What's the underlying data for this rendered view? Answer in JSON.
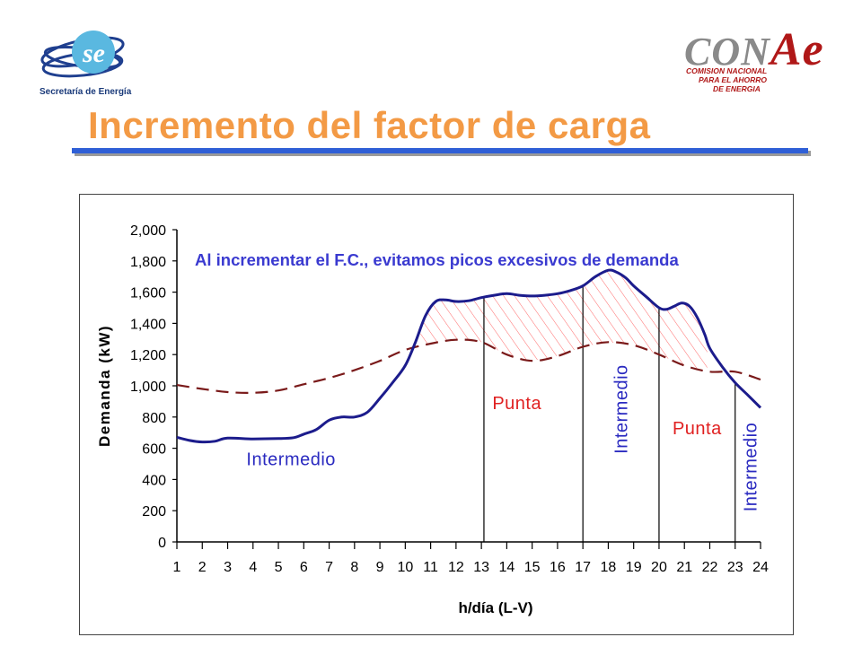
{
  "header": {
    "left_logo_caption": "Secretaría de Energía",
    "right_logo": {
      "word": "CON",
      "word_accent": "Ae",
      "lines": [
        "COMISION NACIONAL",
        "PARA EL AHORRO",
        "DE ENERGIA"
      ]
    },
    "title": "Incremento del factor de carga"
  },
  "colors": {
    "title": "#f39a45",
    "rule": "#2f5fd6",
    "demand_line": "#1c1c8c",
    "target_line": "#7a1a1a",
    "hatch": "#ff6a6a",
    "annotation": "#3a3ad0"
  },
  "chart_data": {
    "type": "line",
    "xlabel": "h/día (L-V)",
    "ylabel": "Demanda (kW)",
    "ylim": [
      0,
      2000
    ],
    "yticks": [
      0,
      200,
      400,
      600,
      800,
      1000,
      1200,
      1400,
      1600,
      1800,
      2000
    ],
    "ytick_labels": [
      "0",
      "200",
      "400",
      "600",
      "800",
      "1,000",
      "1,200",
      "1,400",
      "1,600",
      "1,800",
      "2,000"
    ],
    "xlim": [
      1,
      24
    ],
    "xticks": [
      1,
      2,
      3,
      4,
      5,
      6,
      7,
      8,
      9,
      10,
      11,
      12,
      13,
      14,
      15,
      16,
      17,
      18,
      19,
      20,
      21,
      22,
      23,
      24
    ],
    "xtick_labels": [
      "1",
      "2",
      "3",
      "4",
      "5",
      "6",
      "7",
      "8",
      "9",
      "10",
      "11",
      "12",
      "13",
      "14",
      "15",
      "16",
      "17",
      "18",
      "19",
      "20",
      "21",
      "22",
      "23",
      "24"
    ],
    "grid": false,
    "annotation": "Al incrementar el F.C., evitamos picos excesivos de demanda",
    "series": [
      {
        "style": "solid",
        "points": [
          [
            1,
            670
          ],
          [
            1.5,
            650
          ],
          [
            2,
            640
          ],
          [
            2.5,
            645
          ],
          [
            3,
            665
          ],
          [
            4,
            660
          ],
          [
            5,
            662
          ],
          [
            5.6,
            668
          ],
          [
            6,
            690
          ],
          [
            6.5,
            720
          ],
          [
            7,
            780
          ],
          [
            7.5,
            800
          ],
          [
            8,
            800
          ],
          [
            8.5,
            830
          ],
          [
            9,
            920
          ],
          [
            9.5,
            1020
          ],
          [
            10,
            1130
          ],
          [
            10.4,
            1280
          ],
          [
            10.8,
            1450
          ],
          [
            11.2,
            1540
          ],
          [
            11.6,
            1550
          ],
          [
            12,
            1540
          ],
          [
            12.5,
            1545
          ],
          [
            13,
            1565
          ],
          [
            13.5,
            1580
          ],
          [
            14,
            1590
          ],
          [
            14.5,
            1580
          ],
          [
            15,
            1575
          ],
          [
            15.5,
            1580
          ],
          [
            16,
            1590
          ],
          [
            16.5,
            1610
          ],
          [
            17,
            1640
          ],
          [
            17.5,
            1700
          ],
          [
            18,
            1740
          ],
          [
            18.3,
            1730
          ],
          [
            18.7,
            1690
          ],
          [
            19,
            1640
          ],
          [
            19.5,
            1570
          ],
          [
            20,
            1500
          ],
          [
            20.3,
            1490
          ],
          [
            20.6,
            1510
          ],
          [
            20.9,
            1530
          ],
          [
            21.2,
            1510
          ],
          [
            21.5,
            1440
          ],
          [
            21.8,
            1330
          ],
          [
            22,
            1240
          ],
          [
            22.5,
            1120
          ],
          [
            23,
            1020
          ],
          [
            23.5,
            940
          ],
          [
            24,
            860
          ]
        ]
      },
      {
        "style": "dashed",
        "points": [
          [
            1,
            1005
          ],
          [
            2,
            980
          ],
          [
            3,
            960
          ],
          [
            4,
            955
          ],
          [
            5,
            970
          ],
          [
            6,
            1010
          ],
          [
            7,
            1050
          ],
          [
            8,
            1100
          ],
          [
            9,
            1160
          ],
          [
            10,
            1230
          ],
          [
            11,
            1270
          ],
          [
            12,
            1295
          ],
          [
            13,
            1280
          ],
          [
            14,
            1200
          ],
          [
            15,
            1160
          ],
          [
            16,
            1190
          ],
          [
            17,
            1250
          ],
          [
            18,
            1280
          ],
          [
            19,
            1260
          ],
          [
            20,
            1200
          ],
          [
            21,
            1130
          ],
          [
            22,
            1090
          ],
          [
            23,
            1090
          ],
          [
            24,
            1040
          ]
        ]
      }
    ],
    "hatched_region_x": [
      10.6,
      21.9
    ],
    "period_dividers": [
      13.1,
      17,
      20,
      23
    ],
    "period_labels": [
      {
        "text": "Intermedio",
        "x": 5.5,
        "y": 490,
        "color": "#2a2ac0",
        "rotated": false
      },
      {
        "text": "Punta",
        "x": 14.4,
        "y": 850,
        "color": "#e02020",
        "rotated": false
      },
      {
        "text": "Intermedio",
        "x": 18.5,
        "y": 850,
        "color": "#2a2ac0",
        "rotated": true
      },
      {
        "text": "Punta",
        "x": 21.5,
        "y": 690,
        "color": "#e02020",
        "rotated": false
      },
      {
        "text": "Intermedio",
        "x": 23.6,
        "y": 480,
        "color": "#2a2ac0",
        "rotated": true
      }
    ]
  }
}
